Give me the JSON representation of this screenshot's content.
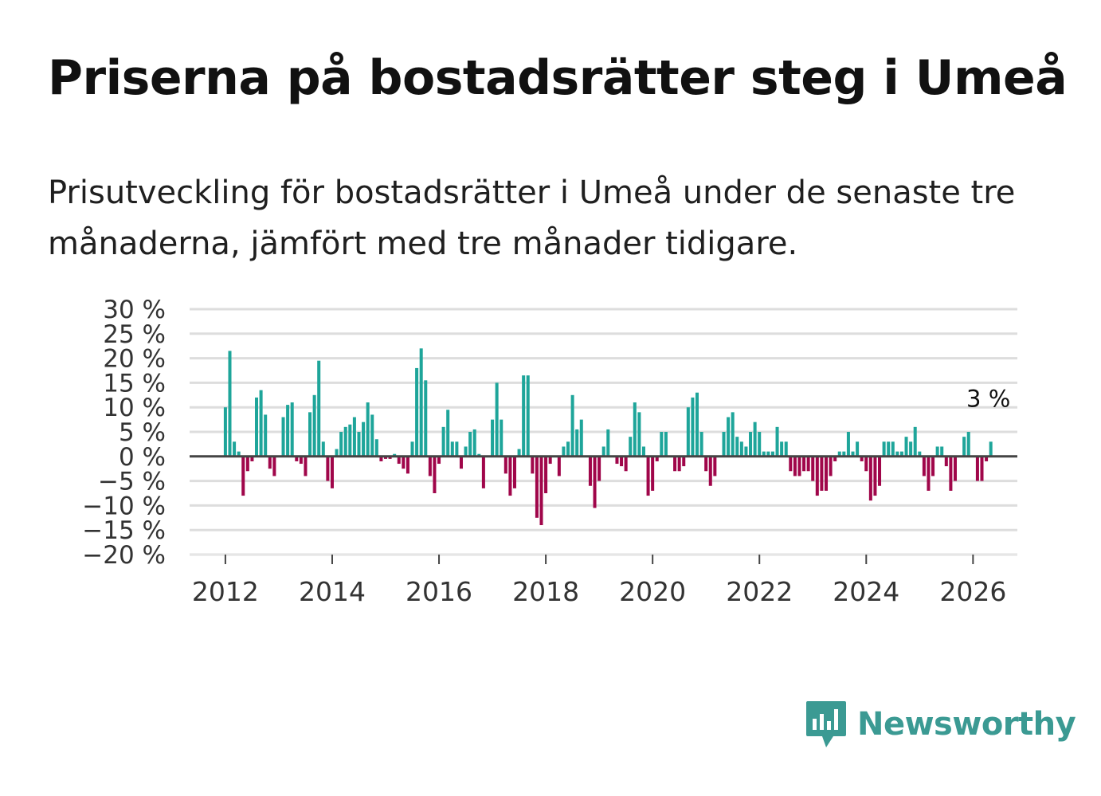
{
  "header": {
    "title": "Priserna på bostadsrätter steg i Umeå",
    "subtitle": "Prisutveckling för bostadsrätter i Umeå under de senaste tre månaderna, jämfört med tre månader tidigare."
  },
  "brand": {
    "name": "Newsworthy",
    "icon": "newsworthy-logo-icon",
    "color": "#3b9a93"
  },
  "colors": {
    "positive": "#1ea59a",
    "negative": "#a0064a",
    "grid": "#dddddd",
    "zero_line": "#444444",
    "text": "#333333"
  },
  "chart_data": {
    "type": "bar",
    "title": "Priserna på bostadsrätter steg i Umeå",
    "xlabel": "",
    "ylabel": "",
    "ylim": [
      -20,
      30
    ],
    "yticks": [
      30,
      25,
      20,
      15,
      10,
      5,
      0,
      -5,
      -10,
      -15,
      -20
    ],
    "ytick_labels": [
      "30 %",
      "25 %",
      "20 %",
      "15 %",
      "10 %",
      "5 %",
      "0 %",
      "−5 %",
      "−10 %",
      "−15 %",
      "−20 %"
    ],
    "xticks": [
      2012,
      2014,
      2016,
      2018,
      2020,
      2022,
      2024,
      2026
    ],
    "xtick_labels": [
      "2012",
      "2014",
      "2016",
      "2018",
      "2020",
      "2022",
      "2024",
      "2026"
    ],
    "xlim": [
      2011.33,
      2026.83
    ],
    "start": 2012.0,
    "step": 0.08333,
    "values": [
      10,
      21.5,
      3,
      1,
      -8,
      -3,
      -1,
      12,
      13.5,
      8.5,
      -2.5,
      -4,
      0,
      8,
      10.5,
      11,
      -1,
      -1.5,
      -4,
      9,
      12.5,
      19.5,
      3,
      -5,
      -6.5,
      1.5,
      5,
      6,
      6.5,
      8,
      5,
      7,
      11,
      8.5,
      3.5,
      -1,
      -0.5,
      -0.5,
      0.5,
      -1.5,
      -2.5,
      -3.5,
      3,
      18,
      22,
      15.5,
      -4,
      -7.5,
      -1.5,
      6,
      9.5,
      3,
      3,
      -2.5,
      2,
      5,
      5.5,
      0.5,
      -6.5,
      0,
      7.5,
      15,
      7.5,
      -3.5,
      -8,
      -6.5,
      1.5,
      16.5,
      16.5,
      -3.5,
      -12.5,
      -14,
      -7.5,
      -1.5,
      0,
      -4,
      2,
      3,
      12.5,
      5.5,
      7.5,
      0,
      -6,
      -10.5,
      -5,
      2,
      5.5,
      0,
      -1.5,
      -2,
      -3,
      4,
      11,
      9,
      2,
      -8,
      -7,
      -1,
      5,
      5,
      0,
      -3,
      -3,
      -2,
      10,
      12,
      13,
      5,
      -3,
      -6,
      -4,
      0,
      5,
      8,
      9,
      4,
      3,
      2,
      5,
      7,
      5,
      1,
      1,
      1,
      6,
      3,
      3,
      -3,
      -4,
      -4,
      -3,
      -3,
      -5,
      -8,
      -7,
      -7,
      -4,
      -1,
      1,
      1,
      5,
      1,
      3,
      -1,
      -3,
      -9,
      -8,
      -6,
      3,
      3,
      3,
      1,
      1,
      4,
      3,
      6,
      1,
      -4,
      -7,
      -4,
      2,
      2,
      -2,
      -7,
      -5,
      0,
      4,
      5,
      0,
      -5,
      -5,
      -1,
      3
    ],
    "annotation": {
      "label": "3 %",
      "value": 3
    }
  }
}
